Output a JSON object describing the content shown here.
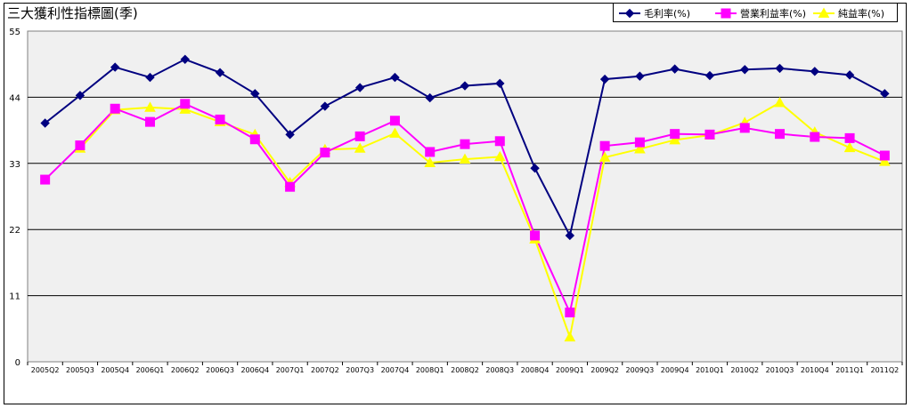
{
  "chart_data": {
    "type": "line",
    "title": "三大獲利性指標圖(季)",
    "xlabel": "",
    "ylabel": "",
    "ylim": [
      0,
      55
    ],
    "yticks": [
      0,
      11,
      22,
      33,
      44,
      55
    ],
    "grid": true,
    "legend_position": "top-right",
    "categories": [
      "2005Q2",
      "2005Q3",
      "2005Q4",
      "2006Q1",
      "2006Q2",
      "2006Q3",
      "2006Q4",
      "2007Q1",
      "2007Q2",
      "2007Q3",
      "2007Q4",
      "2008Q1",
      "2008Q2",
      "2008Q3",
      "2008Q4",
      "2009Q1",
      "2009Q2",
      "2009Q3",
      "2009Q4",
      "2010Q1",
      "2010Q2",
      "2010Q3",
      "2010Q4",
      "2011Q1",
      "2011Q2"
    ],
    "series": [
      {
        "name": "毛利率(%)",
        "color": "#000080",
        "marker": "diamond",
        "values": [
          39.7,
          44.3,
          49.0,
          47.3,
          50.3,
          48.1,
          44.6,
          37.8,
          42.5,
          45.6,
          47.3,
          43.9,
          45.9,
          46.3,
          32.2,
          21.0,
          47.0,
          47.5,
          48.7,
          47.6,
          48.6,
          48.8,
          48.3,
          47.7,
          44.6
        ]
      },
      {
        "name": "營業利益率(%)",
        "color": "#FF00FF",
        "marker": "square",
        "values": [
          30.3,
          36.0,
          42.1,
          39.9,
          42.9,
          40.3,
          37.0,
          29.1,
          34.8,
          37.5,
          40.1,
          34.9,
          36.2,
          36.7,
          21.0,
          8.2,
          35.9,
          36.5,
          37.9,
          37.8,
          38.9,
          37.9,
          37.4,
          37.2,
          34.3
        ]
      },
      {
        "name": "純益率(%)",
        "color": "#FFFF00",
        "marker": "triangle",
        "values": [
          null,
          35.5,
          41.9,
          42.3,
          42.0,
          39.9,
          37.8,
          29.8,
          35.3,
          35.5,
          38.0,
          33.1,
          33.7,
          34.1,
          20.4,
          4.1,
          34.0,
          35.4,
          36.9,
          37.7,
          39.8,
          43.1,
          38.2,
          35.6,
          33.3
        ]
      }
    ]
  }
}
